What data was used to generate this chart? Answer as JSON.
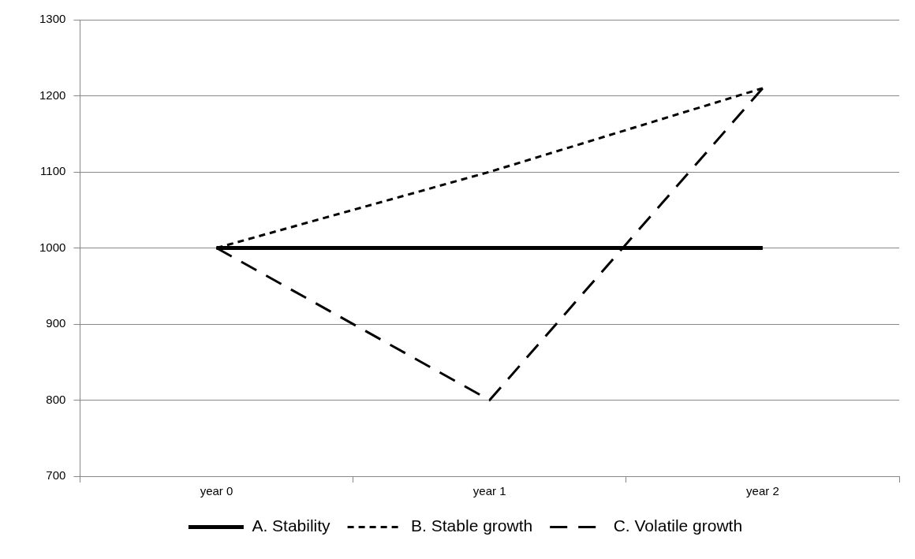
{
  "chart_data": {
    "type": "line",
    "categories": [
      "year 0",
      "year 1",
      "year 2"
    ],
    "series": [
      {
        "name": "A. Stability",
        "color": "#000000",
        "values": [
          1000,
          1000,
          1000
        ],
        "line_style": "solid"
      },
      {
        "name": "B. Stable growth",
        "color": "#000000",
        "values": [
          1000,
          1100,
          1210
        ],
        "line_style": "dotted"
      },
      {
        "name": "C. Volatile growth",
        "color": "#000000",
        "values": [
          1000,
          800,
          1210
        ],
        "line_style": "dashed"
      }
    ],
    "ylim": [
      700,
      1300
    ],
    "yticks": [
      700,
      800,
      900,
      1000,
      1100,
      1200,
      1300
    ],
    "grid": "y",
    "legend": "bottom",
    "marker": "none"
  }
}
